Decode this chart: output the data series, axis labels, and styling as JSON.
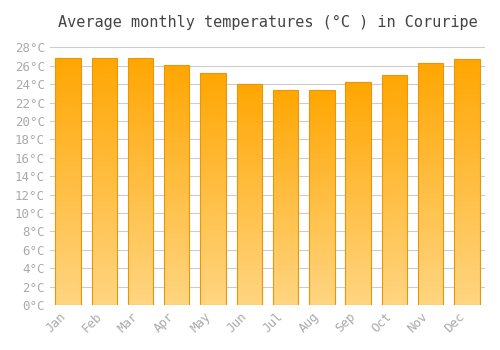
{
  "title": "Average monthly temperatures (°C ) in Coruripe",
  "months": [
    "Jan",
    "Feb",
    "Mar",
    "Apr",
    "May",
    "Jun",
    "Jul",
    "Aug",
    "Sep",
    "Oct",
    "Nov",
    "Dec"
  ],
  "temperatures": [
    26.8,
    26.8,
    26.8,
    26.1,
    25.2,
    24.0,
    23.4,
    23.4,
    24.2,
    25.0,
    26.3,
    26.7
  ],
  "bar_color_top": "#FFA500",
  "bar_color_bottom": "#FFD580",
  "bar_edge_color": "#E8960A",
  "background_color": "#FFFFFF",
  "grid_color": "#CCCCCC",
  "tick_label_color": "#AAAAAA",
  "title_color": "#444444",
  "ylim": [
    0,
    29
  ],
  "yticks": [
    0,
    2,
    4,
    6,
    8,
    10,
    12,
    14,
    16,
    18,
    20,
    22,
    24,
    26,
    28
  ],
  "title_fontsize": 11,
  "tick_fontsize": 9
}
